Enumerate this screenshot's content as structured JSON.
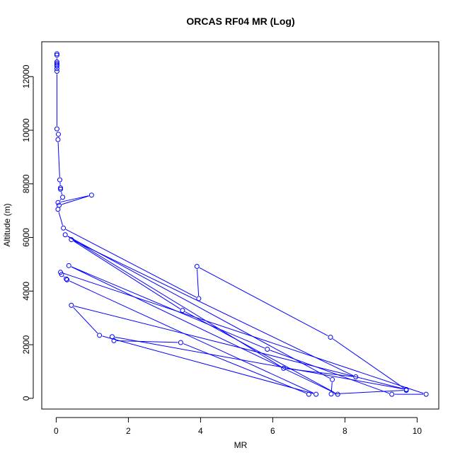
{
  "chart_data": {
    "type": "line",
    "title": "ORCAS RF04 MR (Log)",
    "xlabel": "MR",
    "ylabel": "Altitude (m)",
    "xlim": [
      -0.4,
      10.6
    ],
    "ylim": [
      -400,
      13300
    ],
    "x_ticks": [
      0,
      2,
      4,
      6,
      8,
      10
    ],
    "y_ticks": [
      0,
      2000,
      4000,
      6000,
      8000,
      10000,
      12000
    ],
    "grid": false,
    "legend": "none",
    "series": [
      {
        "color": "#0000ff",
        "marker": "open-circle",
        "points": [
          [
            0.02,
            12850
          ],
          [
            0.02,
            12800
          ],
          [
            0.02,
            12550
          ],
          [
            0.02,
            12500
          ],
          [
            0.02,
            12450
          ],
          [
            0.02,
            12400
          ],
          [
            0.02,
            12300
          ],
          [
            0.02,
            12200
          ],
          [
            0.02,
            10050
          ],
          [
            0.06,
            9850
          ],
          [
            0.05,
            9650
          ],
          [
            0.1,
            8150
          ],
          [
            0.12,
            7850
          ],
          [
            0.12,
            7800
          ],
          [
            0.18,
            7500
          ],
          [
            0.05,
            7300
          ],
          [
            0.98,
            7580
          ],
          [
            0.08,
            7200
          ],
          [
            0.05,
            7050
          ],
          [
            0.2,
            6350
          ],
          [
            3.95,
            3720
          ],
          [
            3.9,
            4920
          ],
          [
            7.6,
            2280
          ],
          [
            9.7,
            320
          ],
          [
            9.7,
            300
          ],
          [
            7.62,
            160
          ],
          [
            7.65,
            700
          ],
          [
            0.25,
            6100
          ],
          [
            6.3,
            1120
          ],
          [
            8.3,
            800
          ],
          [
            0.42,
            5920
          ],
          [
            3.5,
            3280
          ],
          [
            7.8,
            150
          ],
          [
            0.35,
            4950
          ],
          [
            5.85,
            1830
          ],
          [
            9.3,
            150
          ],
          [
            10.25,
            150
          ],
          [
            0.12,
            4700
          ],
          [
            0.15,
            4620
          ],
          [
            0.28,
            4450
          ],
          [
            0.3,
            4420
          ],
          [
            7.2,
            150
          ],
          [
            1.2,
            2350
          ],
          [
            0.42,
            3470
          ],
          [
            9.7,
            330
          ],
          [
            1.55,
            2300
          ],
          [
            1.6,
            2150
          ],
          [
            3.45,
            2080
          ],
          [
            7.0,
            150
          ]
        ]
      }
    ]
  }
}
